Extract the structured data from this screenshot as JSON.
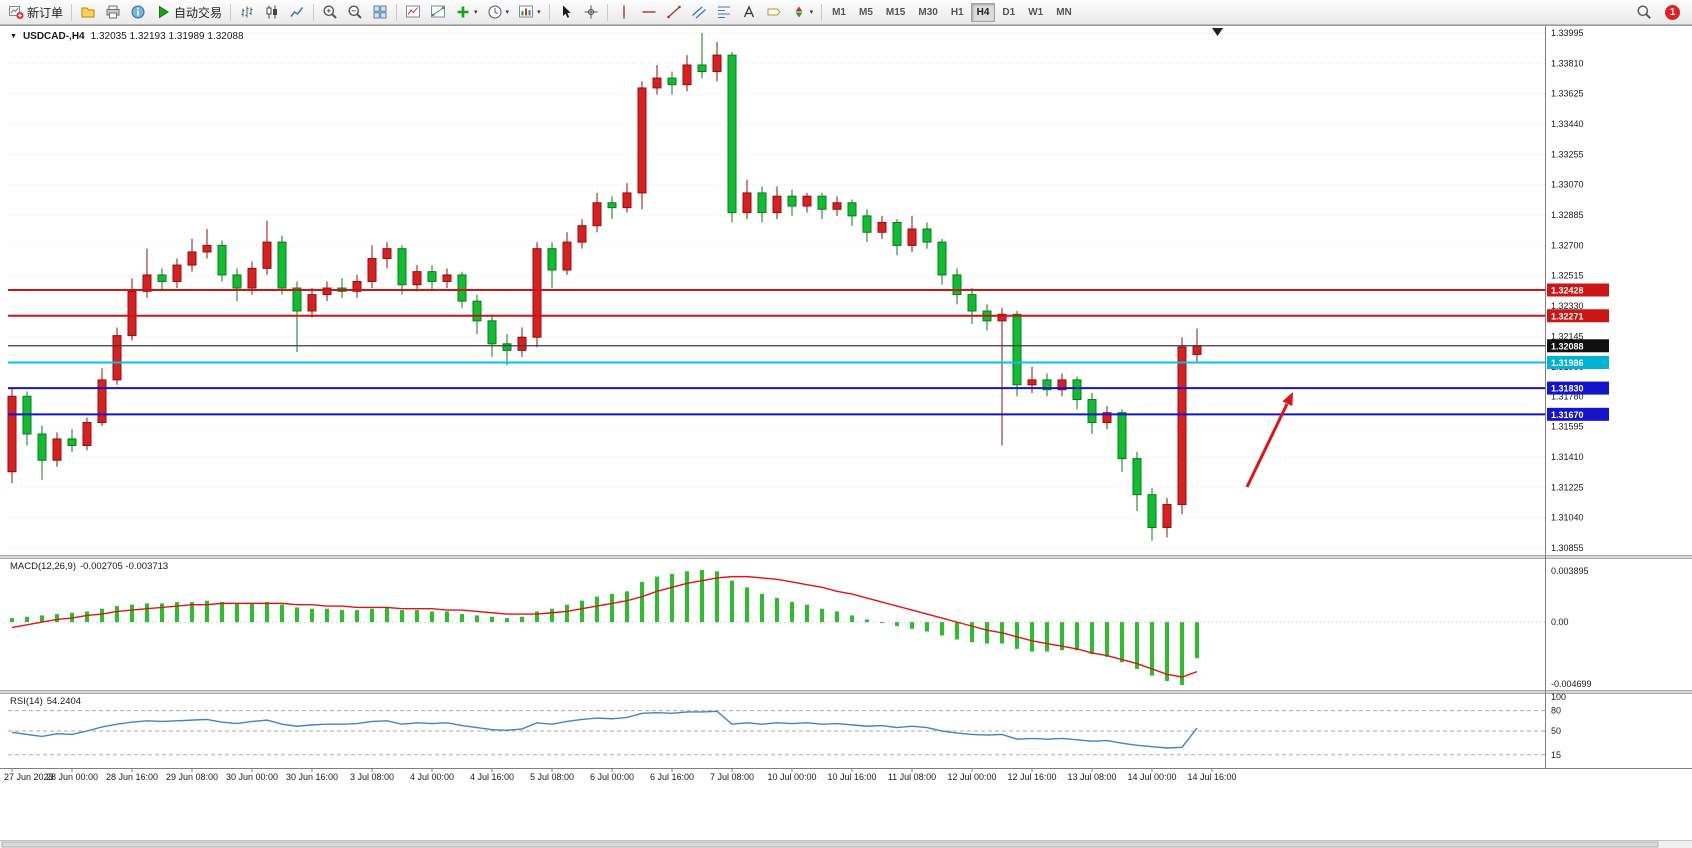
{
  "app": {
    "badge_count": "1"
  },
  "icons": {
    "chart_menu": "▼",
    "caret": "▾"
  },
  "toolbar": {
    "groups": [
      {
        "items": [
          {
            "name": "new-order-button",
            "icon": "chart-plus",
            "label": "新订单"
          }
        ]
      },
      {
        "items": [
          {
            "name": "navigator-button",
            "icon": "profile"
          },
          {
            "name": "print-button",
            "icon": "print"
          },
          {
            "name": "data-window-button",
            "icon": "data-window"
          },
          {
            "name": "auto-trading-button",
            "icon": "play",
            "label": "自动交易"
          }
        ]
      },
      {
        "items": [
          {
            "name": "bar-chart-button",
            "icon": "bars"
          },
          {
            "name": "candlestick-chart-button",
            "icon": "candles"
          },
          {
            "name": "line-chart-button",
            "icon": "line-chart"
          }
        ]
      },
      {
        "items": [
          {
            "name": "zoom-in-button",
            "icon": "zoom-in"
          },
          {
            "name": "zoom-out-button",
            "icon": "zoom-out"
          },
          {
            "name": "tile-windows-button",
            "icon": "tile"
          }
        ]
      },
      {
        "items": [
          {
            "name": "indicators-button",
            "icon": "indicator"
          },
          {
            "name": "objects-list-button",
            "icon": "objects"
          },
          {
            "name": "add-indicator-button",
            "icon": "plus",
            "caret": true
          },
          {
            "name": "periods-button",
            "icon": "clock",
            "caret": true
          },
          {
            "name": "templates-button",
            "icon": "template",
            "caret": true
          }
        ]
      },
      {
        "items": [
          {
            "name": "cursor-button",
            "icon": "cursor"
          },
          {
            "name": "crosshair-button",
            "icon": "crosshair"
          }
        ]
      },
      {
        "items": [
          {
            "name": "vertical-line-button",
            "icon": "vline"
          },
          {
            "name": "horizontal-line-button",
            "icon": "hline"
          },
          {
            "name": "trendline-button",
            "icon": "tline"
          },
          {
            "name": "equidistant-channel-button",
            "icon": "channel"
          },
          {
            "name": "fibonacci-button",
            "icon": "fibo"
          },
          {
            "name": "text-button",
            "icon": "text"
          },
          {
            "name": "text-label-button",
            "icon": "label"
          },
          {
            "name": "arrow-objects-button",
            "icon": "symbols",
            "caret": true
          }
        ]
      }
    ],
    "timeframes": [
      {
        "label": "M1"
      },
      {
        "label": "M5"
      },
      {
        "label": "M15"
      },
      {
        "label": "M30"
      },
      {
        "label": "H1"
      },
      {
        "label": "H4",
        "active": true
      },
      {
        "label": "D1"
      },
      {
        "label": "W1"
      },
      {
        "label": "MN"
      }
    ]
  },
  "chart_data": {
    "type": "candlestick",
    "title": "USDCAD-,H4",
    "ohlc_header": "1.32035 1.32193 1.31989 1.32088",
    "bull_color": "#d91f1f",
    "bear_color": "#0fbe2e",
    "price_ticks": [
      1.33995,
      1.3381,
      1.33625,
      1.3344,
      1.33255,
      1.3307,
      1.32885,
      1.327,
      1.32515,
      1.3233,
      1.32145,
      1.3196,
      1.3178,
      1.31595,
      1.3141,
      1.31225,
      1.3104,
      1.30855
    ],
    "candles": [
      [
        1.3132,
        1.3183,
        1.3125,
        1.3178
      ],
      [
        1.3178,
        1.3181,
        1.3148,
        1.3155
      ],
      [
        1.3155,
        1.316,
        1.3127,
        1.3139
      ],
      [
        1.3139,
        1.3156,
        1.3135,
        1.3152
      ],
      [
        1.3152,
        1.3158,
        1.3144,
        1.3148
      ],
      [
        1.3148,
        1.3165,
        1.3145,
        1.3162
      ],
      [
        1.3162,
        1.3195,
        1.316,
        1.3188
      ],
      [
        1.3188,
        1.322,
        1.3185,
        1.3215
      ],
      [
        1.3215,
        1.325,
        1.3212,
        1.3242
      ],
      [
        1.3242,
        1.3268,
        1.3238,
        1.3252
      ],
      [
        1.3252,
        1.3256,
        1.3242,
        1.3248
      ],
      [
        1.3248,
        1.3262,
        1.3244,
        1.3258
      ],
      [
        1.3258,
        1.3274,
        1.3254,
        1.3266
      ],
      [
        1.3266,
        1.328,
        1.3262,
        1.327
      ],
      [
        1.327,
        1.3273,
        1.3248,
        1.3252
      ],
      [
        1.3252,
        1.3256,
        1.3236,
        1.3244
      ],
      [
        1.3244,
        1.326,
        1.324,
        1.3256
      ],
      [
        1.3256,
        1.3285,
        1.3252,
        1.3272
      ],
      [
        1.3272,
        1.3276,
        1.324,
        1.3244
      ],
      [
        1.3244,
        1.3248,
        1.3205,
        1.323
      ],
      [
        1.323,
        1.3244,
        1.3226,
        1.324
      ],
      [
        1.324,
        1.3248,
        1.3236,
        1.3244
      ],
      [
        1.3244,
        1.325,
        1.3238,
        1.3242
      ],
      [
        1.3242,
        1.3252,
        1.3238,
        1.3248
      ],
      [
        1.3248,
        1.327,
        1.3244,
        1.3262
      ],
      [
        1.3262,
        1.3272,
        1.3256,
        1.3268
      ],
      [
        1.3268,
        1.327,
        1.324,
        1.3246
      ],
      [
        1.3246,
        1.3258,
        1.3242,
        1.3254
      ],
      [
        1.3254,
        1.3258,
        1.3242,
        1.3248
      ],
      [
        1.3248,
        1.3256,
        1.3244,
        1.3252
      ],
      [
        1.3252,
        1.3254,
        1.3232,
        1.3236
      ],
      [
        1.3236,
        1.324,
        1.3216,
        1.3224
      ],
      [
        1.3224,
        1.3228,
        1.3202,
        1.321
      ],
      [
        1.321,
        1.3216,
        1.3197,
        1.3206
      ],
      [
        1.3206,
        1.322,
        1.3202,
        1.3214
      ],
      [
        1.3214,
        1.3272,
        1.3208,
        1.3268
      ],
      [
        1.3268,
        1.3272,
        1.3244,
        1.3255
      ],
      [
        1.3255,
        1.3278,
        1.3252,
        1.3272
      ],
      [
        1.3272,
        1.3286,
        1.3268,
        1.3282
      ],
      [
        1.3282,
        1.3302,
        1.3278,
        1.3296
      ],
      [
        1.3296,
        1.33,
        1.3286,
        1.3293
      ],
      [
        1.3293,
        1.3308,
        1.329,
        1.3302
      ],
      [
        1.3302,
        1.337,
        1.3292,
        1.3366
      ],
      [
        1.3366,
        1.338,
        1.3362,
        1.3372
      ],
      [
        1.3372,
        1.3376,
        1.3362,
        1.3368
      ],
      [
        1.3368,
        1.3386,
        1.3364,
        1.338
      ],
      [
        1.338,
        1.33995,
        1.3372,
        1.3376
      ],
      [
        1.3376,
        1.3394,
        1.337,
        1.3386
      ],
      [
        1.3386,
        1.3388,
        1.3284,
        1.329
      ],
      [
        1.329,
        1.331,
        1.3286,
        1.3302
      ],
      [
        1.3302,
        1.3306,
        1.3284,
        1.329
      ],
      [
        1.329,
        1.3306,
        1.3286,
        1.33
      ],
      [
        1.33,
        1.3304,
        1.3288,
        1.3294
      ],
      [
        1.3294,
        1.3302,
        1.329,
        1.33
      ],
      [
        1.33,
        1.3302,
        1.3286,
        1.3292
      ],
      [
        1.3292,
        1.33,
        1.3288,
        1.3296
      ],
      [
        1.3296,
        1.3298,
        1.3282,
        1.3288
      ],
      [
        1.3288,
        1.3292,
        1.3272,
        1.3278
      ],
      [
        1.3278,
        1.3288,
        1.3274,
        1.3284
      ],
      [
        1.3284,
        1.3286,
        1.3264,
        1.327
      ],
      [
        1.327,
        1.3288,
        1.3266,
        1.328
      ],
      [
        1.328,
        1.3284,
        1.3268,
        1.3272
      ],
      [
        1.3272,
        1.3274,
        1.3246,
        1.3252
      ],
      [
        1.3252,
        1.3256,
        1.3234,
        1.324
      ],
      [
        1.324,
        1.3244,
        1.3222,
        1.323
      ],
      [
        1.323,
        1.3234,
        1.3218,
        1.3224
      ],
      [
        1.3224,
        1.3232,
        1.3148,
        1.3228
      ],
      [
        1.3228,
        1.323,
        1.3178,
        1.3185
      ],
      [
        1.3185,
        1.3196,
        1.318,
        1.3188
      ],
      [
        1.3188,
        1.3192,
        1.3178,
        1.3182
      ],
      [
        1.3182,
        1.3192,
        1.3178,
        1.3188
      ],
      [
        1.3188,
        1.319,
        1.317,
        1.3176
      ],
      [
        1.3176,
        1.318,
        1.3155,
        1.3162
      ],
      [
        1.3162,
        1.3172,
        1.3158,
        1.3168
      ],
      [
        1.3168,
        1.317,
        1.3132,
        1.314
      ],
      [
        1.314,
        1.3144,
        1.3108,
        1.3118
      ],
      [
        1.3118,
        1.3122,
        1.309,
        1.3098
      ],
      [
        1.3098,
        1.3116,
        1.3092,
        1.3112
      ],
      [
        1.3112,
        1.3214,
        1.3106,
        1.3208
      ],
      [
        1.32035,
        1.32193,
        1.31989,
        1.32088
      ]
    ],
    "levels": [
      {
        "value": 1.32428,
        "line_color": "#cc1515",
        "box_color": "#cc1515"
      },
      {
        "value": 1.32271,
        "line_color": "#cc1515",
        "box_color": "#cc1515"
      },
      {
        "value": 1.32088,
        "line_color": "#3c3c3c",
        "box_color": "#101010",
        "current": true
      },
      {
        "value": 1.31986,
        "line_color": "#00c6e6",
        "box_color": "#00b2d4"
      },
      {
        "value": 1.3183,
        "line_color": "#1414cc",
        "box_color": "#1414cc"
      },
      {
        "value": 1.3167,
        "line_color": "#1414cc",
        "box_color": "#1414cc"
      }
    ],
    "macd": {
      "label": "MACD(12,26,9)",
      "values_text": "-0.002705 -0.003713",
      "axis_labels": [
        "0.003895",
        "0.00",
        "-0.004699"
      ],
      "histogram_color": "#2dbd2d",
      "signal_color": "#e01414",
      "histogram": [
        0.0003,
        0.0004,
        0.0005,
        0.0006,
        0.0007,
        0.0008,
        0.001,
        0.0012,
        0.0013,
        0.0014,
        0.0014,
        0.0015,
        0.0015,
        0.0016,
        0.0015,
        0.0014,
        0.0014,
        0.0015,
        0.0013,
        0.0011,
        0.001,
        0.001,
        0.0009,
        0.0009,
        0.001,
        0.0011,
        0.0009,
        0.0009,
        0.0008,
        0.0008,
        0.0006,
        0.0005,
        0.0004,
        0.0003,
        0.0004,
        0.0008,
        0.001,
        0.0013,
        0.0016,
        0.0019,
        0.0021,
        0.0023,
        0.003,
        0.0034,
        0.0036,
        0.0038,
        0.0039,
        0.0038,
        0.0031,
        0.0026,
        0.0021,
        0.0018,
        0.0015,
        0.0013,
        0.001,
        0.0008,
        0.0005,
        0.0002,
        0.0,
        -0.0003,
        -0.0005,
        -0.0007,
        -0.001,
        -0.0013,
        -0.0015,
        -0.0016,
        -0.0016,
        -0.002,
        -0.0022,
        -0.0022,
        -0.0021,
        -0.0021,
        -0.0024,
        -0.0026,
        -0.003,
        -0.0035,
        -0.004,
        -0.0044,
        -0.0047,
        -0.0027
      ],
      "signal": [
        -0.0004,
        -0.0002,
        0.0,
        0.0002,
        0.0003,
        0.0005,
        0.0006,
        0.0008,
        0.0009,
        0.001,
        0.0011,
        0.0012,
        0.0013,
        0.0013,
        0.0014,
        0.0014,
        0.0014,
        0.0014,
        0.0014,
        0.0013,
        0.0013,
        0.0012,
        0.0012,
        0.0011,
        0.0011,
        0.0011,
        0.001,
        0.001,
        0.001,
        0.0009,
        0.0009,
        0.0008,
        0.0007,
        0.0006,
        0.0006,
        0.0006,
        0.0007,
        0.0008,
        0.001,
        0.0012,
        0.0014,
        0.0016,
        0.0019,
        0.0023,
        0.0026,
        0.0029,
        0.0031,
        0.0033,
        0.0034,
        0.0034,
        0.0033,
        0.0032,
        0.003,
        0.0028,
        0.0026,
        0.0023,
        0.0021,
        0.0018,
        0.0015,
        0.0012,
        0.0009,
        0.0006,
        0.0003,
        0.0,
        -0.0003,
        -0.0006,
        -0.0008,
        -0.0011,
        -0.0014,
        -0.0016,
        -0.0018,
        -0.002,
        -0.0023,
        -0.0025,
        -0.0028,
        -0.0031,
        -0.0035,
        -0.0039,
        -0.0041,
        -0.0037
      ]
    },
    "rsi": {
      "label": "RSI(14)",
      "value_text": "54.2404",
      "axis_labels": [
        "100",
        "80",
        "50",
        "15"
      ],
      "level_lines": [
        80,
        50,
        15
      ],
      "line_color": "#3d85c8",
      "series": [
        48,
        45,
        42,
        46,
        45,
        50,
        56,
        60,
        63,
        65,
        64,
        65,
        66,
        67,
        63,
        61,
        64,
        66,
        60,
        57,
        59,
        60,
        60,
        61,
        64,
        65,
        60,
        62,
        61,
        62,
        58,
        55,
        52,
        51,
        53,
        62,
        60,
        64,
        67,
        69,
        68,
        70,
        76,
        77,
        76,
        78,
        78,
        79,
        60,
        62,
        60,
        62,
        61,
        62,
        60,
        61,
        59,
        57,
        58,
        55,
        57,
        55,
        50,
        47,
        45,
        44,
        45,
        38,
        39,
        38,
        39,
        37,
        35,
        36,
        32,
        29,
        27,
        25,
        26,
        54.2404
      ]
    },
    "time_labels": [
      "27 Jun 2023",
      "28 Jun 00:00",
      "28 Jun 16:00",
      "29 Jun 08:00",
      "30 Jun 00:00",
      "30 Jun 16:00",
      "3 Jul 08:00",
      "4 Jul 00:00",
      "4 Jul 16:00",
      "5 Jul 08:00",
      "6 Jul 00:00",
      "6 Jul 16:00",
      "7 Jul 08:00",
      "10 Jul 00:00",
      "10 Jul 16:00",
      "11 Jul 08:00",
      "12 Jul 00:00",
      "12 Jul 16:00",
      "13 Jul 08:00",
      "14 Jul 00:00",
      "14 Jul 16:00"
    ],
    "annotation_arrow": {
      "color": "#e01414"
    }
  }
}
